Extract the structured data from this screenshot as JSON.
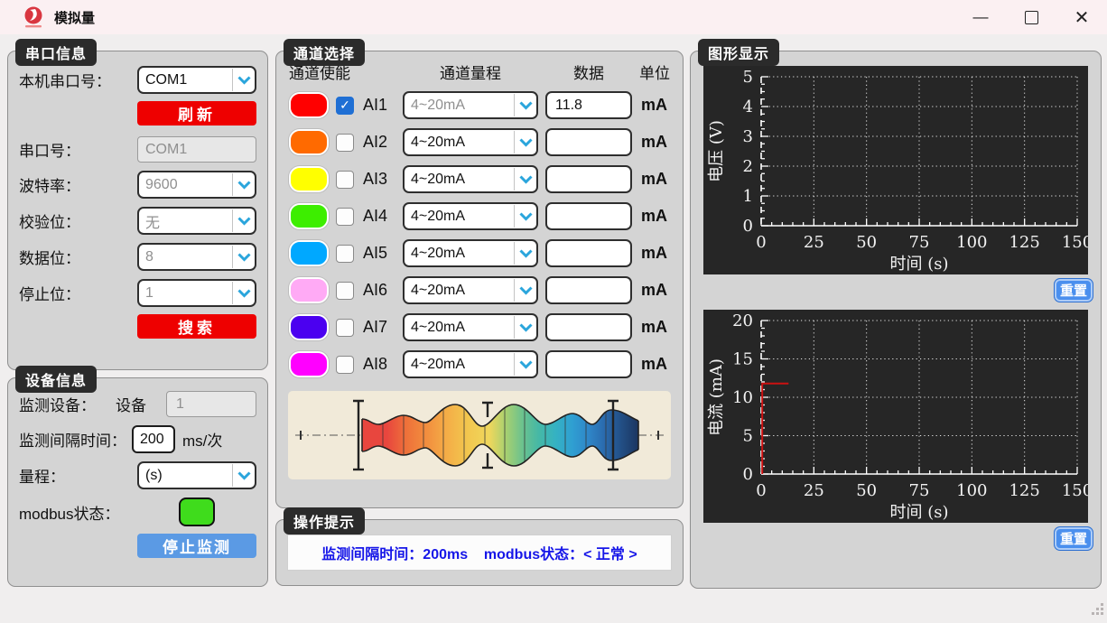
{
  "window": {
    "title": "模拟量",
    "controls": {
      "minimize": "—",
      "close": "✕"
    }
  },
  "colors": {
    "accent_red": "#ee0000",
    "accent_blue": "#5b9ae4",
    "reset_blue": "#4a8fee",
    "panel_gray": "#d4d4d4",
    "chart_bg": "#262626",
    "hint_text_blue": "#1616e8",
    "modbus_led_green": "#3fdc1c",
    "checkbox_blue": "#1f6fd4"
  },
  "serial_panel": {
    "title": "串口信息",
    "fields": [
      {
        "label": "本机串口号：",
        "value": "COM1"
      },
      {
        "label": "串口号：",
        "value": "COM1"
      },
      {
        "label": "波特率：",
        "value": "9600"
      },
      {
        "label": "校验位：",
        "value": "无"
      },
      {
        "label": "数据位：",
        "value": "8"
      },
      {
        "label": "停止位：",
        "value": "1"
      }
    ],
    "refresh_button": "刷新",
    "search_button": "搜索"
  },
  "device_panel": {
    "title": "设备信息",
    "device_label": "监测设备：",
    "device_prefix": "设备",
    "device_value": "1",
    "interval_label": "监测间隔时间：",
    "interval_value": "200",
    "interval_unit": "ms/次",
    "range_label": "量程：",
    "range_value": "(s)",
    "modbus_label": "modbus状态：",
    "stop_button": "停止监测"
  },
  "channel_panel": {
    "title": "通道选择",
    "headers": {
      "enable": "通道使能",
      "range": "通道量程",
      "data": "数据",
      "unit": "单位"
    },
    "channels": [
      {
        "name": "AI1",
        "color": "#ff0000",
        "checked": true,
        "range": "4~20mA",
        "value": "11.8",
        "unit": "mA"
      },
      {
        "name": "AI2",
        "color": "#ff6a00",
        "checked": false,
        "range": "4~20mA",
        "value": "",
        "unit": "mA"
      },
      {
        "name": "AI3",
        "color": "#ffff00",
        "checked": false,
        "range": "4~20mA",
        "value": "",
        "unit": "mA"
      },
      {
        "name": "AI4",
        "color": "#3dee00",
        "checked": false,
        "range": "4~20mA",
        "value": "",
        "unit": "mA"
      },
      {
        "name": "AI5",
        "color": "#00a8ff",
        "checked": false,
        "range": "4~20mA",
        "value": "",
        "unit": "mA"
      },
      {
        "name": "AI6",
        "color": "#ffaaf5",
        "checked": false,
        "range": "4~20mA",
        "value": "",
        "unit": "mA"
      },
      {
        "name": "AI7",
        "color": "#4b00f0",
        "checked": false,
        "range": "4~20mA",
        "value": "",
        "unit": "mA"
      },
      {
        "name": "AI8",
        "color": "#ff00ff",
        "checked": false,
        "range": "4~20mA",
        "value": "",
        "unit": "mA"
      }
    ]
  },
  "hint_panel": {
    "title": "操作提示",
    "text": "监测间隔时间：200ms    modbus状态：< 正常 >"
  },
  "graph_panel": {
    "title": "图形显示",
    "reset_button": "重置"
  },
  "chart_data": [
    {
      "type": "line",
      "title": "",
      "xlabel": "时间 (s)",
      "ylabel": "电压 (V)",
      "xlim": [
        0,
        150
      ],
      "ylim": [
        0,
        5
      ],
      "xticks": [
        0,
        25,
        50,
        75,
        100,
        125,
        150
      ],
      "yticks": [
        0,
        1,
        2,
        3,
        4,
        5
      ],
      "xminor": 5,
      "yminor": 0.25,
      "grid": true,
      "legend": false,
      "series": []
    },
    {
      "type": "line",
      "title": "",
      "xlabel": "时间 (s)",
      "ylabel": "电流 (mA)",
      "xlim": [
        0,
        150
      ],
      "ylim": [
        0,
        20
      ],
      "xticks": [
        0,
        25,
        50,
        75,
        100,
        125,
        150
      ],
      "yticks": [
        0,
        5,
        10,
        15,
        20
      ],
      "xminor": 5,
      "yminor": 1,
      "grid": true,
      "legend": false,
      "series": [
        {
          "name": "AI1",
          "color": "#cc1111",
          "points": [
            [
              0.5,
              0
            ],
            [
              0.5,
              11.8
            ],
            [
              13,
              11.8
            ]
          ]
        }
      ]
    }
  ]
}
